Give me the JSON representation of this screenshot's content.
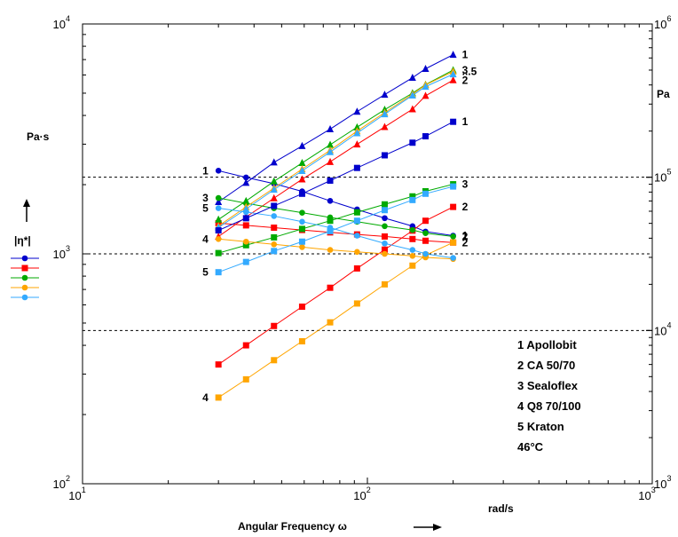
{
  "chart_data": {
    "type": "scatter",
    "x_scale": "log",
    "y_scale": "log",
    "xlim": [
      10,
      1000
    ],
    "ylim": [
      100,
      10000
    ],
    "y2lim": [
      1000,
      1000000
    ],
    "x_ticks": [
      {
        "base": "10",
        "exp": "1"
      },
      {
        "base": "10",
        "exp": "2"
      },
      {
        "base": "10",
        "exp": "3"
      }
    ],
    "y_ticks": [
      {
        "base": "10",
        "exp": "2"
      },
      {
        "base": "10",
        "exp": "3"
      },
      {
        "base": "10",
        "exp": "4"
      }
    ],
    "y2_ticks": [
      {
        "base": "10",
        "exp": "3"
      },
      {
        "base": "10",
        "exp": "4"
      },
      {
        "base": "10",
        "exp": "5"
      },
      {
        "base": "10",
        "exp": "6"
      }
    ],
    "xlabel": "Angular Frequency ω",
    "x_unit": "rad/s",
    "ylabel_unit": "Pa·s",
    "ylabel_symbol": "|η*|",
    "y2label_unit": "Pa",
    "y2_gridlines": [
      10000,
      100000,
      31623
    ],
    "legend_lines": [
      "1 Apollobit",
      "2 CA 50/70",
      "3 Sealoflex",
      "4 Q8 70/100",
      "5 Kraton",
      "46°C"
    ],
    "legend_markers": [
      {
        "color": "#0000cc",
        "marker": "circle"
      },
      {
        "color": "#ff0000",
        "marker": "square"
      },
      {
        "color": "#00aa00",
        "marker": "circle"
      },
      {
        "color": "#ffa500",
        "marker": "circle"
      },
      {
        "color": "#33aaff",
        "marker": "circle"
      }
    ],
    "x": [
      30,
      37.5,
      47,
      59,
      74,
      92,
      115,
      144,
      160,
      200
    ],
    "series": [
      {
        "label": "1",
        "quantity": "|eta*|",
        "axis": "left",
        "color": "#0000cc",
        "marker": "circle",
        "values": [
          2300,
          2150,
          2020,
          1870,
          1700,
          1560,
          1430,
          1320,
          1250,
          1200
        ],
        "start_label": "1",
        "end_label": "1"
      },
      {
        "label": "1",
        "quantity": "modulus",
        "axis": "right",
        "color": "#0000cc",
        "marker": "triangle",
        "values": [
          69000,
          92000,
          125000,
          160000,
          206000,
          268000,
          346000,
          446000,
          510000,
          630000
        ],
        "start_label": "",
        "end_label": "1"
      },
      {
        "label": "2",
        "quantity": "|eta*|",
        "axis": "left",
        "color": "#ff0000",
        "marker": "square",
        "values": [
          1360,
          1330,
          1300,
          1270,
          1240,
          1215,
          1190,
          1160,
          1140,
          1120
        ],
        "start_label": "",
        "end_label": "2"
      },
      {
        "label": "2",
        "quantity": "modulus",
        "axis": "right",
        "color": "#ff0000",
        "marker": "triangle",
        "values": [
          41000,
          55000,
          73000,
          97000,
          126000,
          164000,
          213000,
          278000,
          340000,
          430000
        ],
        "start_label": "",
        "end_label": "2"
      },
      {
        "label": "2",
        "quantity": "modulus",
        "axis": "right",
        "color": "#ff0000",
        "marker": "square",
        "values": [
          6000,
          8000,
          10700,
          14300,
          19000,
          25400,
          33700,
          44800,
          52000,
          64000
        ],
        "start_label": "",
        "end_label": "2"
      },
      {
        "label": "3",
        "quantity": "|eta*|",
        "axis": "left",
        "color": "#00aa00",
        "marker": "circle",
        "values": [
          1750,
          1660,
          1580,
          1510,
          1440,
          1380,
          1320,
          1270,
          1230,
          1190
        ],
        "start_label": "3",
        "end_label": "2"
      },
      {
        "label": "3",
        "quantity": "modulus",
        "axis": "right",
        "color": "#00aa00",
        "marker": "triangle",
        "values": [
          53000,
          70000,
          94000,
          124000,
          163000,
          212000,
          276000,
          354000,
          402000,
          500000
        ],
        "start_label": "",
        "end_label": "3"
      },
      {
        "label": "3",
        "quantity": "modulus",
        "axis": "right",
        "color": "#00aa00",
        "marker": "square",
        "values": [
          32000,
          36000,
          40500,
          46000,
          52000,
          59000,
          66500,
          75000,
          81000,
          90000
        ],
        "start_label": "",
        "end_label": "3"
      },
      {
        "label": "4",
        "quantity": "|eta*|",
        "axis": "left",
        "color": "#ffa500",
        "marker": "circle",
        "values": [
          1160,
          1130,
          1100,
          1070,
          1040,
          1020,
          1000,
          980,
          965,
          950
        ],
        "start_label": "4",
        "end_label": ""
      },
      {
        "label": "4",
        "quantity": "modulus",
        "axis": "right",
        "color": "#ffa500",
        "marker": "triangle",
        "values": [
          48000,
          64000,
          85000,
          113000,
          150000,
          200000,
          264000,
          348000,
          400000,
          490000
        ],
        "start_label": "",
        "end_label": "...5"
      },
      {
        "label": "4",
        "quantity": "modulus",
        "axis": "right",
        "color": "#ffa500",
        "marker": "square",
        "values": [
          3650,
          4800,
          6400,
          8500,
          11300,
          15000,
          20000,
          26500,
          31000,
          37500
        ],
        "start_label": "4",
        "end_label": ""
      },
      {
        "label": "5",
        "quantity": "|eta*|",
        "axis": "left",
        "color": "#33aaff",
        "marker": "circle",
        "values": [
          1580,
          1520,
          1460,
          1380,
          1300,
          1200,
          1110,
          1040,
          1000,
          960
        ],
        "start_label": "5",
        "end_label": ""
      },
      {
        "label": "5",
        "quantity": "modulus",
        "axis": "right",
        "color": "#33aaff",
        "marker": "triangle",
        "values": [
          47000,
          62000,
          83000,
          110000,
          146000,
          194000,
          258000,
          342000,
          390000,
          470000
        ],
        "start_label": "",
        "end_label": ""
      },
      {
        "label": "5",
        "quantity": "modulus",
        "axis": "right",
        "color": "#33aaff",
        "marker": "square",
        "values": [
          24000,
          28000,
          33000,
          38000,
          44500,
          52000,
          61000,
          71000,
          78000,
          87000
        ],
        "start_label": "5",
        "end_label": ""
      },
      {
        "label": "1",
        "quantity": "modulus",
        "axis": "right",
        "color": "#0000cc",
        "marker": "square",
        "values": [
          45000,
          54000,
          65000,
          78000,
          95000,
          115000,
          139000,
          168000,
          185000,
          230000
        ],
        "start_label": "",
        "end_label": "1"
      }
    ]
  }
}
